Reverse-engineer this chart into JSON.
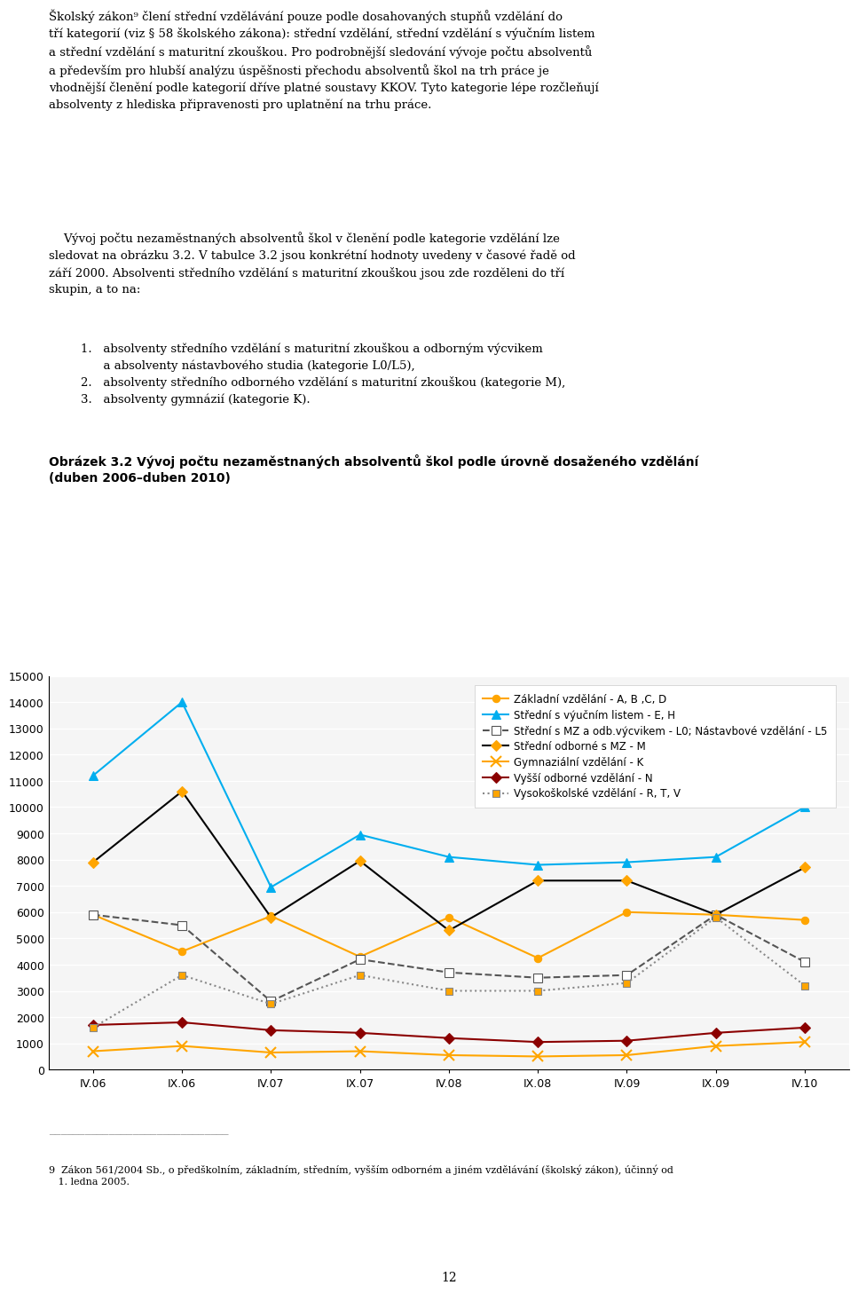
{
  "title_bold": "Obrázek 3.2 Vývoj počtu nezaměstnaných absolventů škol podle úrovně dosaženého vzdělání",
  "title_line2": "(duben 2006–duben 2010)",
  "x_labels": [
    "IV.06",
    "IX.06",
    "IV.07",
    "IX.07",
    "IV.08",
    "IX.08",
    "IV.09",
    "IX.09",
    "IV.10"
  ],
  "ylim": [
    0,
    15000
  ],
  "yticks": [
    0,
    1000,
    2000,
    3000,
    4000,
    5000,
    6000,
    7000,
    8000,
    9000,
    10000,
    11000,
    12000,
    13000,
    14000,
    15000
  ],
  "series": [
    {
      "label": "Základní vzdělání - A, B ,C, D",
      "color": "#FFA500",
      "linestyle": "-",
      "marker": "o",
      "marker_facecolor": "#FFA500",
      "linewidth": 1.5,
      "markersize": 6,
      "values": [
        5900,
        4500,
        5850,
        4300,
        5800,
        4250,
        6000,
        5900,
        5700
      ]
    },
    {
      "label": "Střední s výučním listem - E, H",
      "color": "#00AEEF",
      "linestyle": "-",
      "marker": "^",
      "marker_facecolor": "#00AEEF",
      "linewidth": 1.5,
      "markersize": 7,
      "values": [
        11200,
        14000,
        6950,
        8950,
        8100,
        7800,
        7900,
        8100,
        10000
      ]
    },
    {
      "label": "Střední s MZ a odb.výcvikem - L0; Nástavbové vzdělání - L5",
      "color": "#555555",
      "linestyle": "--",
      "marker": "s",
      "marker_facecolor": "white",
      "marker_edgecolor": "#555555",
      "linewidth": 1.5,
      "markersize": 7,
      "values": [
        5900,
        5500,
        2600,
        4200,
        3700,
        3500,
        3600,
        5900,
        4100
      ]
    },
    {
      "label": "Střední odborné s MZ - M",
      "color": "#000000",
      "linestyle": "-",
      "marker": "D",
      "marker_facecolor": "#FFA500",
      "linewidth": 1.5,
      "markersize": 6,
      "values": [
        7900,
        10600,
        5800,
        7950,
        5300,
        7200,
        7200,
        5900,
        7700
      ]
    },
    {
      "label": "Gymnaziální vzdělání - K",
      "color": "#FFA500",
      "linestyle": "-",
      "marker": "x",
      "marker_facecolor": "#FFA500",
      "marker_edgecolor": "#FFA500",
      "linewidth": 1.5,
      "markersize": 8,
      "values": [
        700,
        900,
        650,
        700,
        550,
        500,
        550,
        900,
        1050
      ]
    },
    {
      "label": "Vyšší odborné vzdělání - N",
      "color": "#8B0000",
      "linestyle": "-",
      "marker": "D",
      "marker_facecolor": "#8B0000",
      "linewidth": 1.5,
      "markersize": 6,
      "values": [
        1700,
        1800,
        1500,
        1400,
        1200,
        1050,
        1100,
        1400,
        1600
      ]
    },
    {
      "label": "Vysokoškolské vzdělání - R, T, V",
      "color": "#888888",
      "linestyle": ":",
      "marker": "s",
      "marker_facecolor": "#FFA500",
      "marker_edgecolor": "#888888",
      "linewidth": 1.5,
      "markersize": 6,
      "values": [
        1600,
        3600,
        2500,
        3600,
        3000,
        3000,
        3300,
        5800,
        3200
      ]
    }
  ],
  "text_above": [
    {
      "text": "Školský zákon",
      "superscript": "9",
      "rest": " člení střední vzdělávání pouze podle dosahovaných stupňů vzdělání do tří kategorií (viz § 58 školského zákona): střední vzdělání, střední vzdělání s výučním listem a střední vzdělání s maturitní zkouškou. Pro podrobnější sledování vývoje počtu absolventů a především pro hlubší analýzu úspěšnosti přechodu absolventů škol na trh práce je vhodnější členění podle kategorií dříve platné soustavy KKOV. Tyto kategorie lépe rozčleňují absolventy z hlediska připravenosti pro uplatnění na trhu práce.",
      "fontsize": 9.5
    }
  ],
  "paragraph2": "Vývoj počtu nezaměstnaných absolventů škol v členění podle kategorie vzdělání lze sledovat na obrázku 3.2. V tabulce 3.2 jsou konkrétní hodnoty uvedeny v časové řadě od září 2000. Absolventi středního vzdělání s maturitní zkouškou jsou zde rozděleni do tří skupin, a to na:",
  "list_items": [
    "absolventy středního vzdělání s maturitní zkouškou a odborným výcvikem\na absolventy nástavbového studia (kategorie L0/L5),",
    "absolventy středního odborného vzdělání s maturitní zkouškou (kategorie M),",
    "absolventy gymnázií (kategorie K)."
  ],
  "footnote_label": "9",
  "footnote_text": "Zákon 561/2004 Sb., o předškolním, základním, středním, vyšším odborném a jiném vzdělávání (školský zákon), účinný od 1. ledna 2005.",
  "page_number": "12",
  "background_color": "#ffffff",
  "chart_bg_color": "#f5f5f5"
}
